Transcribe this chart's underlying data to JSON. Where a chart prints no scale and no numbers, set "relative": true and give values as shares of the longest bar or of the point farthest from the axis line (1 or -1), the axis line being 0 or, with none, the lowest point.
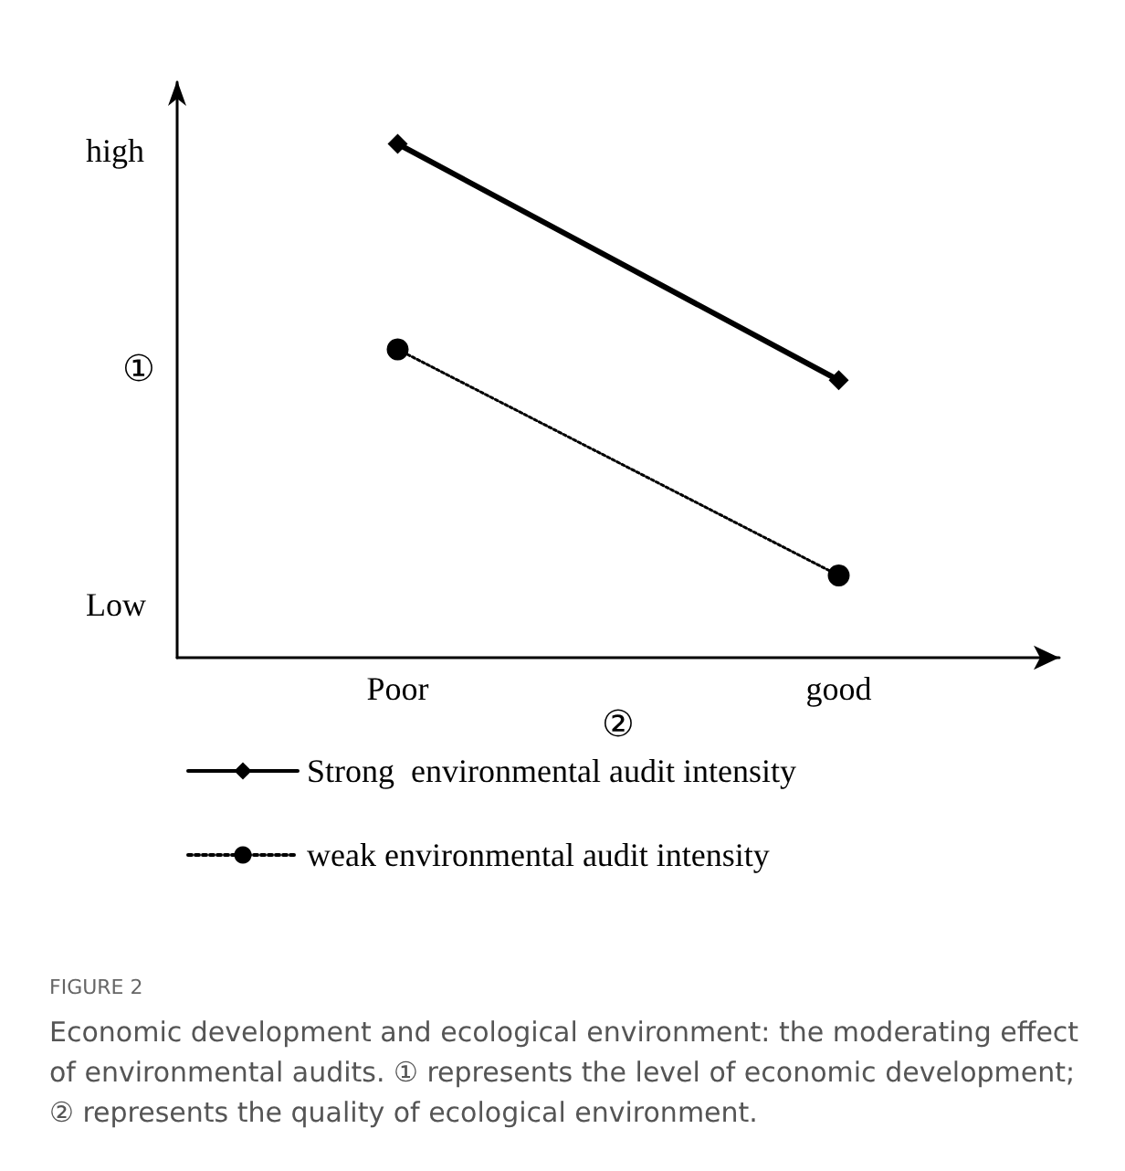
{
  "chart_data": {
    "type": "line",
    "relative": true,
    "title": "FIGURE 2",
    "subtitle": "Economic development and ecological environment: the moderating effect of environmental audits. ① represents the level of economic development; ② represents the quality of ecological environment.",
    "xlabel": "②",
    "ylabel": "①",
    "categories": [
      "Poor",
      "good"
    ],
    "series": [
      {
        "name": "Strong  environmental audit intensity",
        "color": "#000000",
        "values": [
          1,
          0.54
        ],
        "marker": "diamond",
        "line_style": "solid"
      },
      {
        "name": "weak environmental audit intensity",
        "color": "#000000",
        "values": [
          0.6,
          0.16
        ],
        "marker": "circle",
        "line_style": "dotted"
      }
    ],
    "annotations": [
      "high",
      "Low"
    ],
    "legend": "bottom",
    "grid": false
  }
}
